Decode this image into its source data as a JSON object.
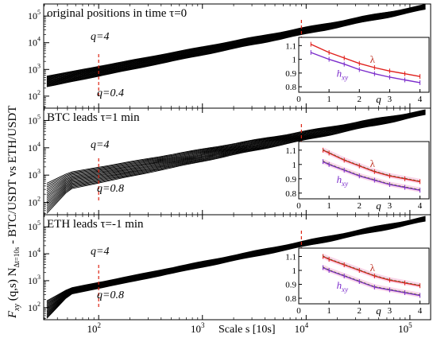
{
  "chart_data": {
    "type": "line",
    "ylabel_main": "F",
    "ylabel_sub": "xy",
    "ylabel_args": " (q,s) N",
    "ylabel_sub2": "Δt=10s",
    "ylabel_tail": " - BTC/USDT vs ETH/USDT",
    "xlabel": "Scale s [10s]",
    "x_ticks": [
      {
        "v": 2,
        "base": "10",
        "exp": "2"
      },
      {
        "v": 3,
        "base": "10",
        "exp": "3"
      },
      {
        "v": 4,
        "base": "10",
        "exp": "4"
      },
      {
        "v": 5,
        "base": "10",
        "exp": "5"
      }
    ],
    "y_ticks": [
      {
        "v": 2,
        "base": "10",
        "exp": "2"
      },
      {
        "v": 3,
        "base": "10",
        "exp": "3"
      },
      {
        "v": 4,
        "base": "10",
        "exp": "4"
      },
      {
        "v": 5,
        "base": "10",
        "exp": "5"
      }
    ],
    "log_scale": true,
    "xlim_log10": [
      1.47,
      5.2
    ],
    "ylim_log10": [
      1.55,
      5.45
    ],
    "vlines_x": [
      100,
      9000
    ],
    "panels": [
      {
        "title": "original positions in time τ=0",
        "q_top_label": "q=4",
        "q_bottom_label": "q=0.4",
        "curves_count": 19,
        "start_log10_y_range": [
          2.35,
          2.75
        ],
        "end_log10_y": 5.42,
        "inset": {
          "x_label": "q",
          "x_ticks": [
            "0",
            "1",
            "2",
            "3",
            "4"
          ],
          "y_ticks": [
            "0.8",
            "0.9",
            "1",
            "1.1"
          ],
          "lambda_label": "λ",
          "hxy_label_main": "h",
          "hxy_label_sub": "xy",
          "lambda_x": [
            0.4,
            1,
            1.5,
            2,
            2.5,
            3,
            3.5,
            4
          ],
          "lambda_y": [
            1.11,
            1.05,
            1.01,
            0.97,
            0.94,
            0.915,
            0.895,
            0.875
          ],
          "hxy_y": [
            1.05,
            1.0,
            0.965,
            0.925,
            0.895,
            0.87,
            0.85,
            0.83
          ],
          "fit": false
        }
      },
      {
        "title": "BTC leads τ=1 min",
        "q_top_label": "q=4",
        "q_bottom_label": "q=0.8",
        "curves_count": 17,
        "start_log10_y_range": [
          1.6,
          2.7
        ],
        "end_log10_y": 5.38,
        "inset": {
          "x_label": "q",
          "x_ticks": [
            "0",
            "1",
            "2",
            "3",
            "4"
          ],
          "y_ticks": [
            "0.8",
            "0.9",
            "1",
            "1.1"
          ],
          "lambda_label": "λ",
          "hxy_label_main": "h",
          "hxy_label_sub": "xy",
          "lambda_x": [
            0.8,
            1,
            1.5,
            2,
            2.5,
            3,
            3.5,
            4
          ],
          "lambda_y": [
            1.1,
            1.08,
            1.03,
            0.99,
            0.95,
            0.92,
            0.9,
            0.88
          ],
          "hxy_y": [
            1.02,
            1.0,
            0.96,
            0.92,
            0.89,
            0.86,
            0.84,
            0.82
          ],
          "fit": true
        }
      },
      {
        "title": "ETH leads τ=-1 min",
        "q_top_label": "q=4",
        "q_bottom_label": "q=0.8",
        "curves_count": 17,
        "start_log10_y_range": [
          1.6,
          2.25
        ],
        "end_log10_y": 5.38,
        "inset": {
          "x_label": "q",
          "x_ticks": [
            "0",
            "1",
            "2",
            "3",
            "4"
          ],
          "y_ticks": [
            "0.8",
            "0.9",
            "1",
            "1.1"
          ],
          "lambda_label": "λ",
          "hxy_label_main": "h",
          "hxy_label_sub": "xy",
          "lambda_x": [
            0.8,
            1,
            1.5,
            2,
            2.5,
            3,
            3.5,
            4
          ],
          "lambda_y": [
            1.1,
            1.08,
            1.04,
            1.0,
            0.96,
            0.93,
            0.91,
            0.89
          ],
          "hxy_y": [
            1.02,
            1.0,
            0.96,
            0.92,
            0.88,
            0.86,
            0.84,
            0.82
          ],
          "fit": true
        }
      }
    ]
  }
}
